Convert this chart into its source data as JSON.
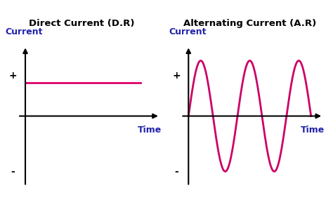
{
  "bg_color": "#ffffff",
  "fig_bg_color": "#f0f0f0",
  "title_dc": "Direct Current (D.R)",
  "title_ac": "Alternating Current (A.R)",
  "title_bg": "#f5e600",
  "title_border": "#999900",
  "title_fontsize": 9.5,
  "axis_label_color": "#2222aa",
  "axis_label_fontsize": 9,
  "plus_minus_fontsize": 10,
  "plus_minus_color": "#000000",
  "time_label": "Time",
  "current_label": "Current",
  "dc_line_color": "#dd006a",
  "ac_line_color": "#cc0066",
  "line_width": 2.0,
  "axis_color": "#000000",
  "bottom_bar_color": "#111111",
  "bottom_bar_height": 0.09
}
